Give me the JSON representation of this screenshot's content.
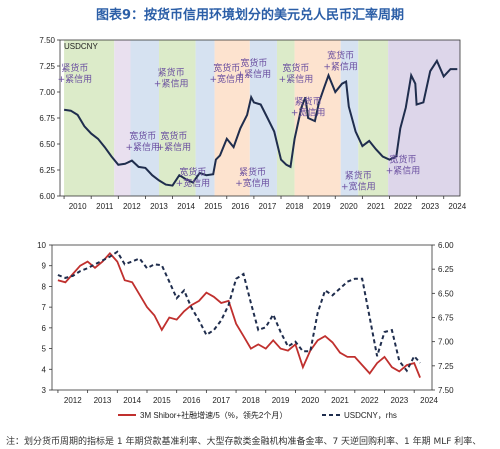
{
  "figure_title": "图表9：按货币信用环境划分的美元兑人民币汇率周期",
  "note": "注：划分货币周期的指标是 1 年期贷款基准利率、大型存款类金融机构准备金率、7 天逆回购利率、1 年期 MLF 利率、",
  "colors": {
    "title": "#2b5ea7",
    "tight_money_loose_credit": "#dcebc9",
    "loose_money_loose_credit": "#fde3cf",
    "loose_money_tight_credit": "#d6e2f1",
    "loose_money_tight_credit_2": "#ddd6ea",
    "tight_tight": "#e9e0ef",
    "line_top": "#1f2d4d",
    "line_red": "#c0302e",
    "line_dashed": "#1f2d4d"
  },
  "chart_data": [
    {
      "type": "line",
      "label": "USDCNY",
      "ylim": [
        6.0,
        7.5
      ],
      "y_ticks": [
        "7.50",
        "7.25",
        "7.00",
        "6.75",
        "6.50",
        "6.25",
        "6.00"
      ],
      "x_ticks": [
        "2010",
        "2011",
        "2012",
        "2013",
        "2014",
        "2015",
        "2016",
        "2017",
        "2018",
        "2019",
        "2020",
        "2021",
        "2022",
        "2023",
        "2024"
      ],
      "regimes": [
        {
          "start": 2010.0,
          "end": 2011.85,
          "style": "tight_money_loose_credit"
        },
        {
          "start": 2011.85,
          "end": 2012.45,
          "style": "tight_tight"
        },
        {
          "start": 2012.45,
          "end": 2013.5,
          "style": "loose_money_tight_credit"
        },
        {
          "start": 2013.5,
          "end": 2014.85,
          "style": "tight_money_loose_credit"
        },
        {
          "start": 2014.85,
          "end": 2015.55,
          "style": "loose_money_tight_credit"
        },
        {
          "start": 2015.55,
          "end": 2016.85,
          "style": "loose_money_loose_credit"
        },
        {
          "start": 2016.85,
          "end": 2017.85,
          "style": "loose_money_tight_credit"
        },
        {
          "start": 2017.85,
          "end": 2018.5,
          "style": "tight_money_loose_credit"
        },
        {
          "start": 2018.5,
          "end": 2020.2,
          "style": "loose_money_loose_credit"
        },
        {
          "start": 2020.2,
          "end": 2020.85,
          "style": "loose_money_tight_credit"
        },
        {
          "start": 2020.85,
          "end": 2021.95,
          "style": "tight_money_loose_credit"
        },
        {
          "start": 2021.95,
          "end": 2024.6,
          "style": "loose_money_tight_credit_2"
        }
      ],
      "annotations": [
        {
          "text": "紧货币\n+紧信用",
          "x": 2010.4,
          "y": 7.2
        },
        {
          "text": "宽货币\n+紧信用",
          "x": 2012.9,
          "y": 6.55
        },
        {
          "text": "紧货币\n+紧信用",
          "x": 2013.95,
          "y": 7.16
        },
        {
          "text": "宽货币\n+紧信用",
          "x": 2014.05,
          "y": 6.55
        },
        {
          "text": "宽货币\n+宽信用",
          "x": 2014.75,
          "y": 6.2
        },
        {
          "text": "宽货币\n+宽信用",
          "x": 2016.0,
          "y": 7.2
        },
        {
          "text": "宽货币\n+紧信用",
          "x": 2017.0,
          "y": 7.25
        },
        {
          "text": "紧货币\n+宽信用",
          "x": 2016.95,
          "y": 6.2
        },
        {
          "text": "宽货币\n+紧信用",
          "x": 2018.55,
          "y": 7.2
        },
        {
          "text": "紧货币\n+宽信用",
          "x": 2019.0,
          "y": 6.88
        },
        {
          "text": "宽货币\n+紧信用",
          "x": 2020.2,
          "y": 7.32
        },
        {
          "text": "紧货币\n+宽信用",
          "x": 2020.85,
          "y": 6.17
        },
        {
          "text": "宽货币\n+紧信用",
          "x": 2022.5,
          "y": 6.32
        }
      ],
      "x": [
        2010.0,
        2010.25,
        2010.5,
        2010.75,
        2011.0,
        2011.25,
        2011.5,
        2011.75,
        2012.0,
        2012.25,
        2012.5,
        2012.75,
        2013.0,
        2013.25,
        2013.5,
        2013.75,
        2014.0,
        2014.25,
        2014.5,
        2014.75,
        2015.0,
        2015.25,
        2015.5,
        2015.6,
        2015.75,
        2016.0,
        2016.25,
        2016.5,
        2016.75,
        2016.9,
        2017.0,
        2017.25,
        2017.5,
        2017.75,
        2018.0,
        2018.2,
        2018.35,
        2018.5,
        2018.75,
        2018.9,
        2019.0,
        2019.25,
        2019.4,
        2019.6,
        2019.75,
        2020.0,
        2020.25,
        2020.4,
        2020.5,
        2020.75,
        2021.0,
        2021.25,
        2021.5,
        2021.75,
        2022.0,
        2022.25,
        2022.4,
        2022.6,
        2022.8,
        2022.95,
        2023.0,
        2023.25,
        2023.5,
        2023.75,
        2024.0,
        2024.25,
        2024.5
      ],
      "y": [
        6.83,
        6.82,
        6.78,
        6.67,
        6.6,
        6.55,
        6.47,
        6.38,
        6.3,
        6.31,
        6.34,
        6.28,
        6.27,
        6.2,
        6.15,
        6.11,
        6.1,
        6.2,
        6.16,
        6.13,
        6.22,
        6.2,
        6.21,
        6.35,
        6.39,
        6.55,
        6.47,
        6.65,
        6.78,
        6.95,
        6.9,
        6.88,
        6.75,
        6.62,
        6.35,
        6.3,
        6.28,
        6.55,
        6.85,
        6.95,
        6.75,
        6.72,
        6.9,
        7.05,
        7.16,
        7.0,
        7.08,
        7.1,
        6.86,
        6.62,
        6.48,
        6.53,
        6.45,
        6.38,
        6.35,
        6.38,
        6.65,
        6.85,
        7.16,
        7.08,
        6.88,
        6.9,
        7.2,
        7.3,
        7.15,
        7.22,
        7.22
      ]
    },
    {
      "type": "line",
      "left_ylim": [
        3,
        10
      ],
      "left_ticks": [
        "10",
        "9",
        "8",
        "7",
        "6",
        "5",
        "4",
        "3"
      ],
      "right_ylim": [
        7.5,
        6.0
      ],
      "right_ticks": [
        "6.00",
        "6.25",
        "6.50",
        "6.75",
        "7.00",
        "7.25",
        "7.50"
      ],
      "x_ticks": [
        "2012",
        "2013",
        "2014",
        "2015",
        "2016",
        "2017",
        "2018",
        "2019",
        "2020",
        "2021",
        "2022",
        "2023",
        "2024"
      ],
      "series": [
        {
          "name": "3M Shibor+社融增速/5（%，领先2个月）",
          "axis": "left",
          "x": [
            2012.0,
            2012.25,
            2012.5,
            2012.75,
            2013.0,
            2013.25,
            2013.5,
            2013.75,
            2014.0,
            2014.25,
            2014.5,
            2014.75,
            2015.0,
            2015.25,
            2015.5,
            2015.75,
            2016.0,
            2016.25,
            2016.5,
            2016.75,
            2017.0,
            2017.25,
            2017.5,
            2017.75,
            2018.0,
            2018.25,
            2018.5,
            2018.75,
            2019.0,
            2019.25,
            2019.5,
            2019.75,
            2020.0,
            2020.25,
            2020.5,
            2020.75,
            2021.0,
            2021.25,
            2021.5,
            2021.75,
            2022.0,
            2022.25,
            2022.5,
            2022.75,
            2023.0,
            2023.25,
            2023.5,
            2023.75,
            2024.0,
            2024.2
          ],
          "y": [
            8.3,
            8.2,
            8.6,
            9.0,
            9.2,
            8.9,
            9.2,
            9.6,
            9.2,
            8.3,
            8.2,
            7.6,
            7.0,
            6.6,
            5.9,
            6.5,
            6.4,
            6.8,
            7.1,
            7.3,
            7.7,
            7.5,
            7.2,
            7.3,
            6.2,
            5.6,
            5.0,
            5.2,
            5.0,
            5.4,
            5.0,
            4.9,
            5.2,
            4.1,
            4.9,
            5.4,
            5.6,
            5.3,
            4.8,
            4.6,
            4.6,
            4.2,
            3.8,
            4.3,
            4.6,
            4.1,
            3.9,
            4.2,
            4.3,
            3.6
          ]
        },
        {
          "name": "USDCNY，rhs",
          "axis": "right",
          "x": [
            2012.0,
            2012.25,
            2012.5,
            2012.75,
            2013.0,
            2013.25,
            2013.5,
            2013.75,
            2014.0,
            2014.25,
            2014.5,
            2014.75,
            2015.0,
            2015.25,
            2015.5,
            2015.75,
            2016.0,
            2016.25,
            2016.5,
            2016.75,
            2017.0,
            2017.25,
            2017.5,
            2017.75,
            2018.0,
            2018.25,
            2018.5,
            2018.75,
            2019.0,
            2019.25,
            2019.5,
            2019.75,
            2020.0,
            2020.25,
            2020.5,
            2020.75,
            2021.0,
            2021.25,
            2021.5,
            2021.75,
            2022.0,
            2022.25,
            2022.5,
            2022.75,
            2023.0,
            2023.25,
            2023.5,
            2023.75,
            2024.0,
            2024.2
          ],
          "y": [
            6.31,
            6.34,
            6.32,
            6.27,
            6.24,
            6.2,
            6.16,
            6.12,
            6.07,
            6.2,
            6.17,
            6.14,
            6.24,
            6.2,
            6.21,
            6.38,
            6.55,
            6.47,
            6.65,
            6.78,
            6.93,
            6.88,
            6.78,
            6.62,
            6.35,
            6.3,
            6.6,
            6.88,
            6.85,
            6.72,
            6.9,
            7.05,
            7.0,
            7.1,
            7.1,
            6.7,
            6.47,
            6.52,
            6.45,
            6.38,
            6.35,
            6.35,
            6.75,
            7.15,
            6.9,
            6.88,
            7.2,
            7.3,
            7.15,
            7.22
          ]
        }
      ]
    }
  ]
}
